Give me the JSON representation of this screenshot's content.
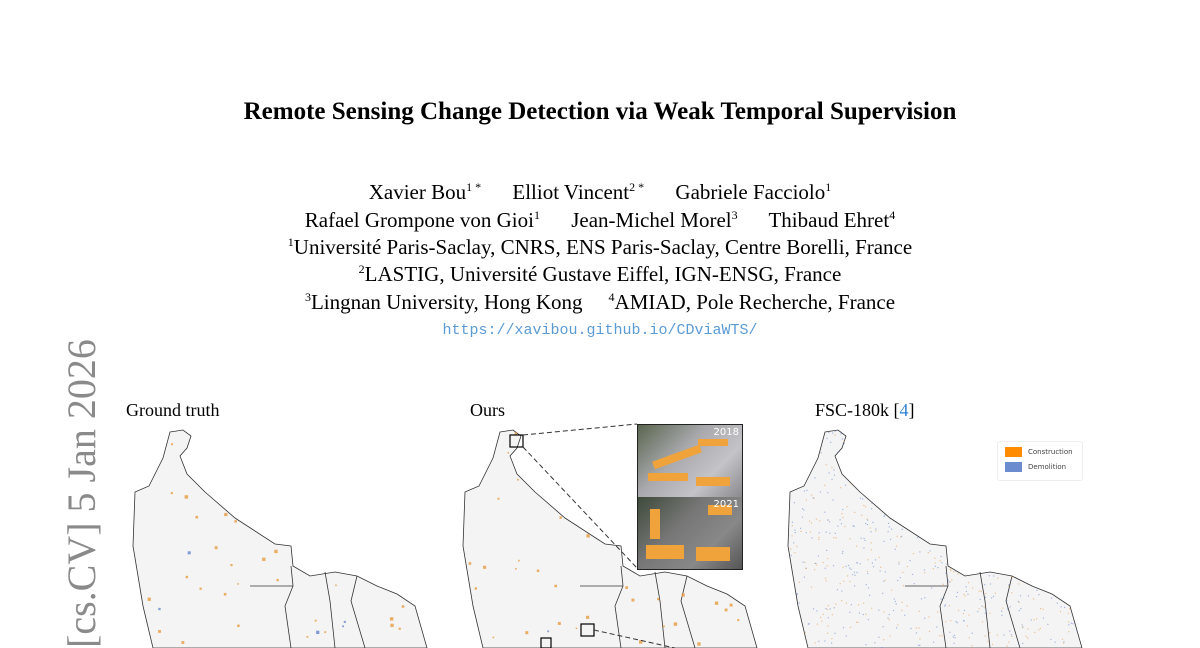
{
  "paper": {
    "title": "Remote Sensing Change Detection via Weak Temporal Supervision",
    "authors_line1": [
      {
        "name": "Xavier Bou",
        "sup": "1 *"
      },
      {
        "name": "Elliot Vincent",
        "sup": "2 *"
      },
      {
        "name": "Gabriele Facciolo",
        "sup": "1"
      }
    ],
    "authors_line2": [
      {
        "name": "Rafael Grompone von Gioi",
        "sup": "1"
      },
      {
        "name": "Jean-Michel Morel",
        "sup": "3"
      },
      {
        "name": "Thibaud Ehret",
        "sup": "4"
      }
    ],
    "affiliations": [
      {
        "sup": "1",
        "text": "Université Paris-Saclay, CNRS, ENS Paris-Saclay, Centre Borelli, France"
      },
      {
        "sup": "2",
        "text": "LASTIG, Université Gustave Eiffel, IGN-ENSG, France"
      },
      {
        "sup": "3",
        "text": "Lingnan University, Hong Kong"
      },
      {
        "sup": "4",
        "text": "AMIAD, Pole Recherche, France"
      }
    ],
    "url": "https://xavibou.github.io/CDviaWTS/",
    "arxiv_stamp": "[cs.CV]  5 Jan 2026"
  },
  "figure": {
    "panels": [
      {
        "caption": "Ground truth"
      },
      {
        "caption": "Ours"
      },
      {
        "caption": "FSC-180k [",
        "ref": "4",
        "caption_end": "]"
      }
    ],
    "legend": [
      {
        "label": "Construction",
        "color": "#ff8c00"
      },
      {
        "label": "Demolition",
        "color": "#6b8cce"
      }
    ],
    "inset_years": [
      "2018",
      "2021"
    ]
  }
}
